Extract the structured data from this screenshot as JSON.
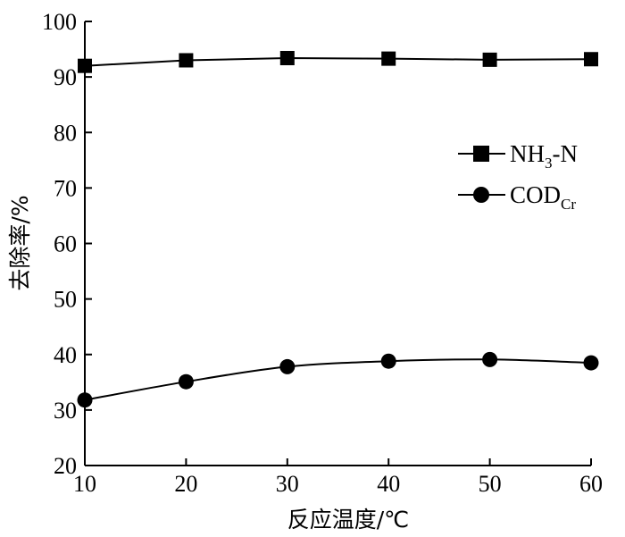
{
  "chart_data": {
    "type": "line",
    "title": "",
    "xlabel": "反应温度/℃",
    "ylabel": "去除率/%",
    "x": [
      10,
      20,
      30,
      40,
      50,
      60
    ],
    "xlim": [
      10,
      60
    ],
    "ylim": [
      20,
      100
    ],
    "xticks": [
      "10",
      "20",
      "30",
      "40",
      "50",
      "60"
    ],
    "yticks": [
      "20",
      "30",
      "40",
      "50",
      "60",
      "70",
      "80",
      "90",
      "100"
    ],
    "grid": false,
    "legend_position": "right",
    "series": [
      {
        "name": "NH3-N",
        "name_main": "NH",
        "name_sub": "3",
        "name_tail": "-N",
        "marker": "square",
        "values": [
          92.0,
          93.0,
          93.4,
          93.3,
          93.1,
          93.2
        ]
      },
      {
        "name": "CODCr",
        "name_main": "COD",
        "name_sub": "Cr",
        "name_tail": "",
        "marker": "circle",
        "values": [
          31.8,
          35.1,
          37.8,
          38.8,
          39.1,
          38.5
        ]
      }
    ]
  }
}
